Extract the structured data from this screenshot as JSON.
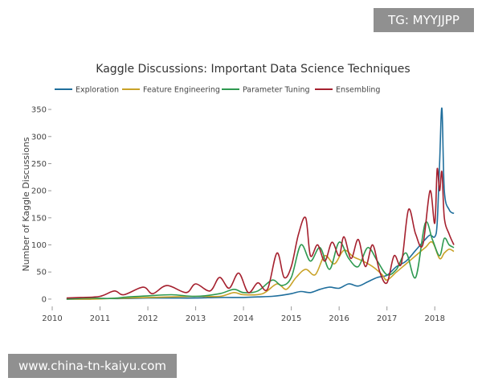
{
  "watermarks": {
    "top_right": "TG: MYYJJPP",
    "bottom_left": "www.china-tn-kaiyu.com"
  },
  "chart_data": {
    "type": "line",
    "title": "Kaggle Discussions: Important Data Science Techniques",
    "xlabel": "",
    "ylabel": "Number of Kaggle Discussions",
    "xlim": [
      2010.0,
      2018.45
    ],
    "ylim": [
      -12,
      362
    ],
    "x_ticks": [
      {
        "value": 2010,
        "label": "2010"
      },
      {
        "value": 2011,
        "label": "2011"
      },
      {
        "value": 2012,
        "label": "2012"
      },
      {
        "value": 2013,
        "label": "2013"
      },
      {
        "value": 2014,
        "label": "2014"
      },
      {
        "value": 2015,
        "label": "2015"
      },
      {
        "value": 2016,
        "label": "2016"
      },
      {
        "value": 2017,
        "label": "2017"
      },
      {
        "value": 2018,
        "label": "2018"
      }
    ],
    "y_ticks": [
      {
        "value": 0,
        "label": "0"
      },
      {
        "value": 50,
        "label": "50"
      },
      {
        "value": 100,
        "label": "100"
      },
      {
        "value": 150,
        "label": "150"
      },
      {
        "value": 200,
        "label": "200"
      },
      {
        "value": 250,
        "label": "250"
      },
      {
        "value": 300,
        "label": "300"
      },
      {
        "value": 350,
        "label": "350"
      }
    ],
    "grid": false,
    "legend_position": "top-left",
    "series": [
      {
        "name": "Exploration",
        "color": "#1f6e9c",
        "x": [
          2010.3,
          2010.6,
          2010.8,
          2011.0,
          2011.5,
          2012.0,
          2012.5,
          2013.0,
          2013.5,
          2014.0,
          2014.3,
          2014.6,
          2014.8,
          2015.0,
          2015.2,
          2015.4,
          2015.6,
          2015.8,
          2016.0,
          2016.2,
          2016.4,
          2016.6,
          2016.8,
          2017.0,
          2017.2,
          2017.4,
          2017.6,
          2017.8,
          2017.9,
          2018.0,
          2018.05,
          2018.1,
          2018.15,
          2018.2,
          2018.3,
          2018.4
        ],
        "values": [
          0,
          0,
          0,
          1,
          1,
          2,
          2,
          2,
          3,
          3,
          4,
          5,
          7,
          10,
          14,
          12,
          18,
          22,
          20,
          28,
          24,
          32,
          40,
          44,
          60,
          70,
          90,
          110,
          118,
          115,
          140,
          250,
          352,
          200,
          165,
          158
        ]
      },
      {
        "name": "Feature Engineering",
        "color": "#c9a227",
        "x": [
          2010.3,
          2010.8,
          2011.2,
          2011.6,
          2012.0,
          2012.5,
          2013.0,
          2013.5,
          2013.8,
          2014.0,
          2014.4,
          2014.7,
          2014.9,
          2015.1,
          2015.3,
          2015.5,
          2015.7,
          2015.9,
          2016.1,
          2016.3,
          2016.5,
          2016.7,
          2016.9,
          2017.0,
          2017.2,
          2017.4,
          2017.6,
          2017.8,
          2017.95,
          2018.1,
          2018.2,
          2018.3,
          2018.4
        ],
        "values": [
          0,
          0,
          1,
          2,
          3,
          4,
          5,
          5,
          12,
          8,
          10,
          28,
          18,
          40,
          55,
          45,
          80,
          65,
          90,
          78,
          70,
          60,
          45,
          35,
          50,
          65,
          80,
          95,
          105,
          75,
          85,
          92,
          88
        ]
      },
      {
        "name": "Parameter Tuning",
        "color": "#2e9950",
        "x": [
          2010.3,
          2010.8,
          2011.2,
          2011.6,
          2012.0,
          2012.5,
          2013.0,
          2013.5,
          2013.8,
          2014.0,
          2014.3,
          2014.6,
          2014.8,
          2015.0,
          2015.2,
          2015.4,
          2015.6,
          2015.8,
          2016.0,
          2016.2,
          2016.4,
          2016.6,
          2016.8,
          2017.0,
          2017.2,
          2017.4,
          2017.6,
          2017.8,
          2017.95,
          2018.1,
          2018.2,
          2018.3,
          2018.4
        ],
        "values": [
          0,
          2,
          1,
          4,
          6,
          8,
          5,
          10,
          18,
          12,
          15,
          35,
          25,
          40,
          100,
          70,
          95,
          55,
          105,
          75,
          60,
          95,
          70,
          45,
          55,
          85,
          40,
          140,
          110,
          80,
          112,
          100,
          95
        ]
      },
      {
        "name": "Ensembling",
        "color": "#a5202e",
        "x": [
          2010.3,
          2010.6,
          2011.0,
          2011.3,
          2011.5,
          2011.9,
          2012.1,
          2012.4,
          2012.8,
          2013.0,
          2013.3,
          2013.5,
          2013.7,
          2013.9,
          2014.1,
          2014.3,
          2014.5,
          2014.7,
          2014.85,
          2015.0,
          2015.15,
          2015.3,
          2015.4,
          2015.55,
          2015.7,
          2015.85,
          2016.0,
          2016.1,
          2016.25,
          2016.4,
          2016.55,
          2016.7,
          2016.85,
          2017.0,
          2017.15,
          2017.3,
          2017.45,
          2017.6,
          2017.75,
          2017.9,
          2018.0,
          2018.05,
          2018.1,
          2018.15,
          2018.2,
          2018.3,
          2018.4
        ],
        "values": [
          2,
          3,
          5,
          15,
          8,
          22,
          10,
          25,
          12,
          28,
          15,
          40,
          20,
          48,
          12,
          30,
          18,
          85,
          40,
          60,
          120,
          150,
          80,
          100,
          70,
          105,
          80,
          115,
          75,
          110,
          60,
          100,
          50,
          30,
          80,
          65,
          165,
          120,
          100,
          200,
          140,
          240,
          200,
          235,
          150,
          120,
          100
        ]
      }
    ]
  }
}
